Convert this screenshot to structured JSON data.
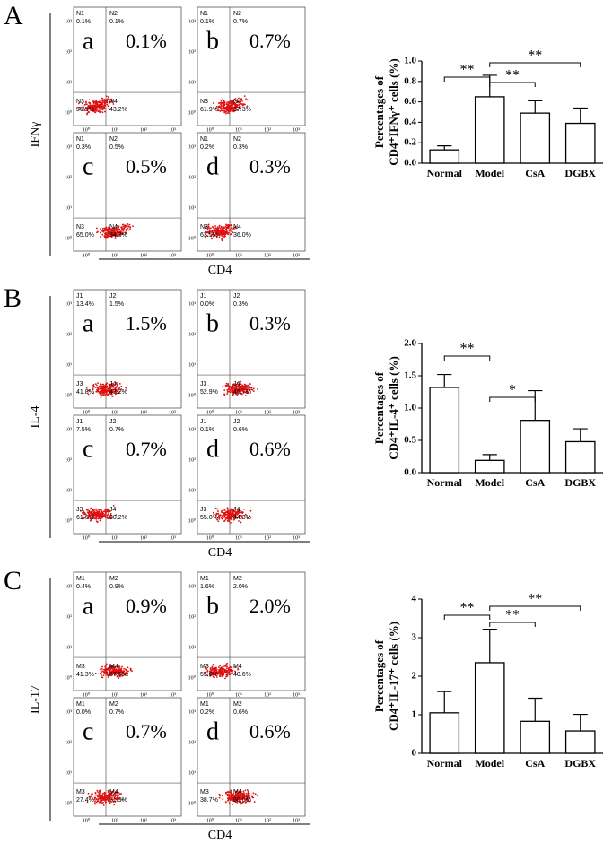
{
  "panels": [
    {
      "letter": "A",
      "marker": "IFNγ",
      "x_label": "CD4",
      "plots": [
        {
          "letter": "a",
          "percent": "0.1%",
          "quadrants": [
            [
              "N1",
              "0.1%"
            ],
            [
              "N2",
              "0.1%"
            ],
            [
              "N3",
              "56.5%"
            ],
            [
              "N4",
              "43.2%"
            ]
          ]
        },
        {
          "letter": "b",
          "percent": "0.7%",
          "quadrants": [
            [
              "N1",
              "0.1%"
            ],
            [
              "N2",
              "0.7%"
            ],
            [
              "N3",
              "61.9%"
            ],
            [
              "N4",
              "37.3%"
            ]
          ]
        },
        {
          "letter": "c",
          "percent": "0.5%",
          "quadrants": [
            [
              "N1",
              "0.3%"
            ],
            [
              "N2",
              "0.5%"
            ],
            [
              "N3",
              "65.0%"
            ],
            [
              "N4",
              "34.3%"
            ]
          ]
        },
        {
          "letter": "d",
          "percent": "0.3%",
          "quadrants": [
            [
              "N1",
              "0.2%"
            ],
            [
              "N2",
              "0.3%"
            ],
            [
              "N3",
              "63.5%"
            ],
            [
              "N4",
              "36.0%"
            ]
          ]
        }
      ]
    },
    {
      "letter": "B",
      "marker": "IL-4",
      "x_label": "CD4",
      "plots": [
        {
          "letter": "a",
          "percent": "1.5%",
          "quadrants": [
            [
              "J1",
              "13.4%"
            ],
            [
              "J2",
              "1.5%"
            ],
            [
              "J3",
              "41.8%"
            ],
            [
              "J4",
              "43.2%"
            ]
          ]
        },
        {
          "letter": "b",
          "percent": "0.3%",
          "quadrants": [
            [
              "J1",
              "0.0%"
            ],
            [
              "J2",
              "0.3%"
            ],
            [
              "J3",
              "52.9%"
            ],
            [
              "J4",
              "46.7%"
            ]
          ]
        },
        {
          "letter": "c",
          "percent": "0.7%",
          "quadrants": [
            [
              "J1",
              "7.5%"
            ],
            [
              "J2",
              "0.7%"
            ],
            [
              "J3",
              "61.6%"
            ],
            [
              "J4",
              "30.2%"
            ]
          ]
        },
        {
          "letter": "d",
          "percent": "0.6%",
          "quadrants": [
            [
              "J1",
              "0.1%"
            ],
            [
              "J2",
              "0.6%"
            ],
            [
              "J3",
              "55.0%"
            ],
            [
              "J4",
              "44.3%"
            ]
          ]
        }
      ]
    },
    {
      "letter": "C",
      "marker": "IL-17",
      "x_label": "CD4",
      "plots": [
        {
          "letter": "a",
          "percent": "0.9%",
          "quadrants": [
            [
              "M1",
              "0.4%"
            ],
            [
              "M2",
              "0.9%"
            ],
            [
              "M3",
              "41.3%"
            ],
            [
              "M4",
              "57.5%"
            ]
          ]
        },
        {
          "letter": "b",
          "percent": "2.0%",
          "quadrants": [
            [
              "M1",
              "1.6%"
            ],
            [
              "M2",
              "2.0%"
            ],
            [
              "M3",
              "55.8%"
            ],
            [
              "M4",
              "40.6%"
            ]
          ]
        },
        {
          "letter": "c",
          "percent": "0.7%",
          "quadrants": [
            [
              "M1",
              "0.0%"
            ],
            [
              "M2",
              "0.7%"
            ],
            [
              "M3",
              "27.4%"
            ],
            [
              "M4",
              "71.9%"
            ]
          ]
        },
        {
          "letter": "d",
          "percent": "0.6%",
          "quadrants": [
            [
              "M1",
              "0.2%"
            ],
            [
              "M2",
              "0.6%"
            ],
            [
              "M3",
              "38.7%"
            ],
            [
              "M4",
              "60.6%"
            ]
          ]
        }
      ]
    }
  ],
  "flow_axis_labels": [
    "10⁰",
    "10¹",
    "10²",
    "10³"
  ],
  "chart_data": [
    {
      "type": "bar",
      "y_label": [
        "Percentages of",
        "CD4⁺IFNγ⁺ cells (%)"
      ],
      "categories": [
        "Normal",
        "Model",
        "CsA",
        "DGBX"
      ],
      "values": [
        0.13,
        0.65,
        0.49,
        0.39
      ],
      "errors": [
        0.04,
        0.21,
        0.12,
        0.15
      ],
      "color": "#ffffff",
      "ylim": [
        0,
        1.0
      ],
      "yticks": [
        {
          "value": 0,
          "label": "0.0"
        },
        {
          "value": 0.2,
          "label": "0.2"
        },
        {
          "value": 0.4,
          "label": "0.4"
        },
        {
          "value": 0.6,
          "label": "0.6"
        },
        {
          "value": 0.8,
          "label": "0.8"
        },
        {
          "value": 1.0,
          "label": "1.0"
        }
      ],
      "significance": [
        {
          "from": "Normal",
          "to": "Model",
          "label": "**"
        },
        {
          "from": "Model",
          "to": "CsA",
          "label": "**"
        },
        {
          "from": "Model",
          "to": "DGBX",
          "label": "**"
        }
      ]
    },
    {
      "type": "bar",
      "y_label": [
        "Percentages of",
        "CD4⁺IL-4⁺ cells (%)"
      ],
      "categories": [
        "Normal",
        "Model",
        "CsA",
        "DGBX"
      ],
      "values": [
        1.32,
        0.19,
        0.81,
        0.48
      ],
      "errors": [
        0.2,
        0.09,
        0.46,
        0.2
      ],
      "color": "#ffffff",
      "ylim": [
        0,
        2.0
      ],
      "yticks": [
        {
          "value": 0,
          "label": "0.0"
        },
        {
          "value": 0.5,
          "label": "0.5"
        },
        {
          "value": 1.0,
          "label": "1.0"
        },
        {
          "value": 1.5,
          "label": "1.5"
        },
        {
          "value": 2.0,
          "label": "2.0"
        }
      ],
      "significance": [
        {
          "from": "Normal",
          "to": "Model",
          "label": "**"
        },
        {
          "from": "Model",
          "to": "CsA",
          "label": "*"
        }
      ]
    },
    {
      "type": "bar",
      "y_label": [
        "Percentages of",
        "CD4⁺IL-17⁺ cells (%)"
      ],
      "categories": [
        "Normal",
        "Model",
        "CsA",
        "DGBX"
      ],
      "values": [
        1.05,
        2.35,
        0.83,
        0.58
      ],
      "errors": [
        0.55,
        0.87,
        0.6,
        0.43
      ],
      "color": "#ffffff",
      "ylim": [
        0,
        4
      ],
      "yticks": [
        0,
        1,
        2,
        3,
        4
      ],
      "significance": [
        {
          "from": "Normal",
          "to": "Model",
          "label": "**"
        },
        {
          "from": "Model",
          "to": "CsA",
          "label": "**"
        },
        {
          "from": "Model",
          "to": "DGBX",
          "label": "**"
        }
      ]
    }
  ]
}
